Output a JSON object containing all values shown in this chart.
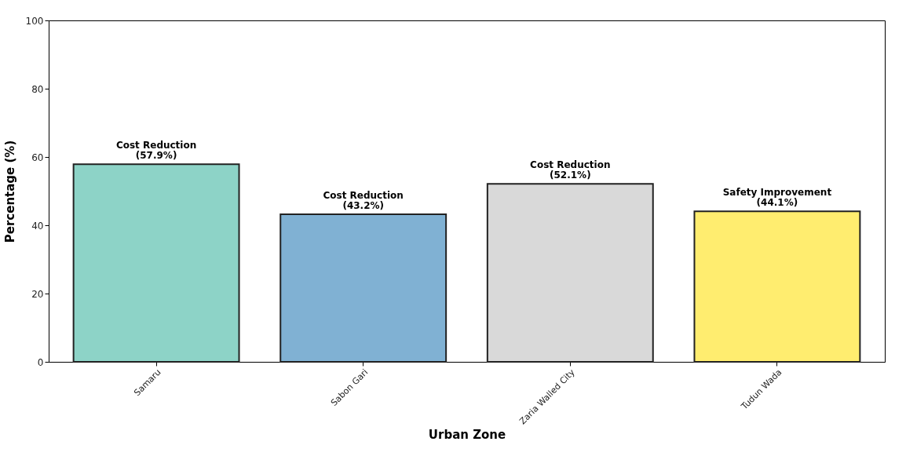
{
  "chart_data": {
    "type": "bar",
    "xlabel": "Urban Zone",
    "ylabel": "Percentage (%)",
    "categories": [
      "Samaru",
      "Sabon Gari",
      "Zaria Walled City",
      "Tudun Wada"
    ],
    "values": [
      57.9,
      43.2,
      52.1,
      44.1
    ],
    "colors": [
      "#8dd3c7",
      "#80b1d3",
      "#d9d9d9",
      "#ffed6f"
    ],
    "value_labels": [
      "Cost Reduction\n(57.9%)",
      "Cost Reduction\n(43.2%)",
      "Cost Reduction\n(52.1%)",
      "Safety Improvement\n(44.1%)"
    ],
    "ylim": [
      0,
      100
    ],
    "yticks": [
      0,
      20,
      40,
      60,
      80,
      100
    ],
    "grid": false
  }
}
